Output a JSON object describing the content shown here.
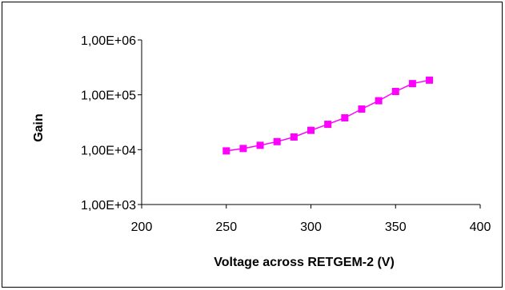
{
  "chart_data": {
    "type": "line",
    "title": "",
    "xlabel": "Voltage across RETGEM-2 (V)",
    "ylabel": "Gain",
    "xlim": [
      200,
      400
    ],
    "ylim": [
      1000,
      1000000
    ],
    "yscale": "log",
    "grid": false,
    "legend": "none",
    "x_ticks": [
      "200",
      "250",
      "300",
      "350",
      "400"
    ],
    "y_ticks": [
      "1,00E+03",
      "1,00E+04",
      "1,00E+05",
      "1,00E+06"
    ],
    "series": [
      {
        "color": "#ff00ff",
        "marker": "square",
        "x": [
          250,
          260,
          270,
          280,
          290,
          300,
          310,
          320,
          330,
          340,
          350,
          360,
          370
        ],
        "y": [
          9500,
          10500,
          12000,
          14000,
          17000,
          22500,
          29000,
          38000,
          55000,
          78000,
          115000,
          160000,
          185000
        ]
      }
    ]
  }
}
